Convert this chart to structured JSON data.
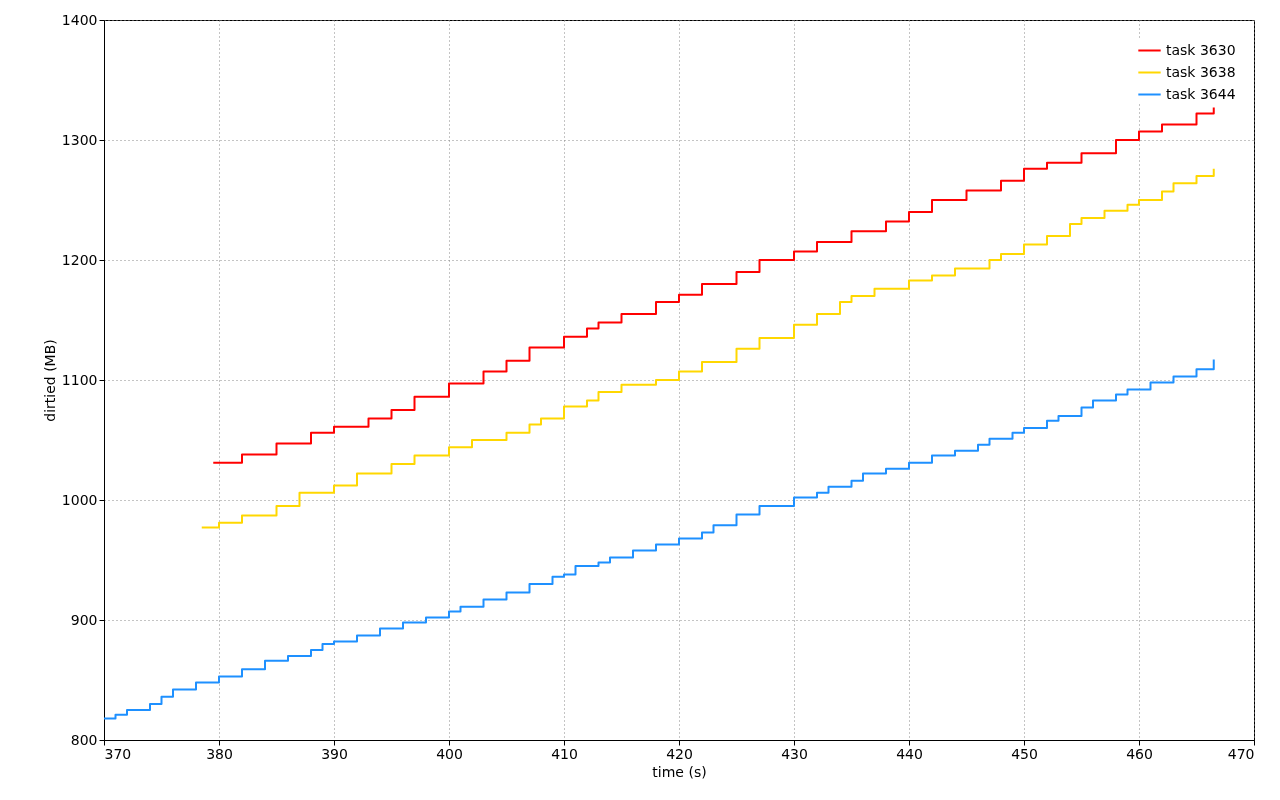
{
  "chart_data": {
    "type": "step",
    "xlabel": "time (s)",
    "ylabel": "dirtied (MB)",
    "xlim": [
      370,
      470
    ],
    "xticks": [
      370,
      380,
      390,
      400,
      410,
      420,
      430,
      440,
      450,
      460,
      470
    ],
    "ylim": [
      800,
      1400
    ],
    "yticks": [
      800,
      900,
      1000,
      1100,
      1200,
      1300,
      1400
    ],
    "grid": true,
    "legend": "top right",
    "line_style": "solid",
    "marker": "none",
    "series": [
      {
        "name": "task 3630",
        "color": "#ff0000",
        "x": [
          379.5,
          382,
          385,
          388,
          390,
          393,
          395,
          397,
          400,
          403,
          405,
          407,
          410,
          412,
          413,
          415,
          418,
          420,
          422,
          425,
          427,
          430,
          432,
          435,
          438,
          440,
          442,
          445,
          448,
          450,
          452,
          455,
          458,
          460,
          462,
          465,
          466.5
        ],
        "values": [
          1031,
          1038,
          1047,
          1056,
          1061,
          1068,
          1075,
          1086,
          1097,
          1107,
          1116,
          1127,
          1136,
          1143,
          1148,
          1155,
          1165,
          1171,
          1180,
          1190,
          1200,
          1207,
          1215,
          1224,
          1232,
          1240,
          1250,
          1258,
          1266,
          1276,
          1281,
          1289,
          1300,
          1307,
          1313,
          1322,
          1327
        ]
      },
      {
        "name": "task 3638",
        "color": "#ffd700",
        "x": [
          378.5,
          380,
          382,
          385,
          387,
          390,
          392,
          395,
          397,
          400,
          402,
          405,
          407,
          408,
          410,
          412,
          413,
          415,
          418,
          420,
          422,
          425,
          427,
          430,
          432,
          434,
          435,
          437,
          440,
          442,
          444,
          447,
          448,
          450,
          452,
          454,
          455,
          457,
          459,
          460,
          462,
          463,
          465,
          466.5
        ],
        "values": [
          977,
          981,
          987,
          995,
          1006,
          1012,
          1022,
          1030,
          1037,
          1044,
          1050,
          1056,
          1063,
          1068,
          1078,
          1083,
          1090,
          1096,
          1100,
          1107,
          1115,
          1126,
          1135,
          1146,
          1155,
          1165,
          1170,
          1176,
          1183,
          1187,
          1193,
          1200,
          1205,
          1213,
          1220,
          1230,
          1235,
          1241,
          1246,
          1250,
          1257,
          1264,
          1270,
          1276
        ]
      },
      {
        "name": "task 3644",
        "color": "#1e90ff",
        "x": [
          370,
          371,
          372,
          374,
          375,
          376,
          378,
          380,
          382,
          384,
          386,
          388,
          389,
          390,
          392,
          394,
          396,
          398,
          400,
          401,
          403,
          405,
          407,
          409,
          410,
          411,
          413,
          414,
          416,
          418,
          420,
          422,
          423,
          425,
          427,
          430,
          432,
          433,
          435,
          436,
          438,
          440,
          442,
          444,
          446,
          447,
          449,
          450,
          452,
          453,
          455,
          456,
          458,
          459,
          461,
          463,
          465,
          466.5
        ],
        "values": [
          818,
          821,
          825,
          830,
          836,
          842,
          848,
          853,
          859,
          866,
          870,
          875,
          880,
          882,
          887,
          893,
          898,
          902,
          907,
          911,
          917,
          923,
          930,
          936,
          938,
          945,
          948,
          952,
          958,
          963,
          968,
          973,
          979,
          988,
          995,
          1002,
          1006,
          1011,
          1016,
          1022,
          1026,
          1031,
          1037,
          1041,
          1046,
          1051,
          1056,
          1060,
          1066,
          1070,
          1077,
          1083,
          1088,
          1092,
          1098,
          1103,
          1109,
          1117
        ]
      }
    ]
  }
}
